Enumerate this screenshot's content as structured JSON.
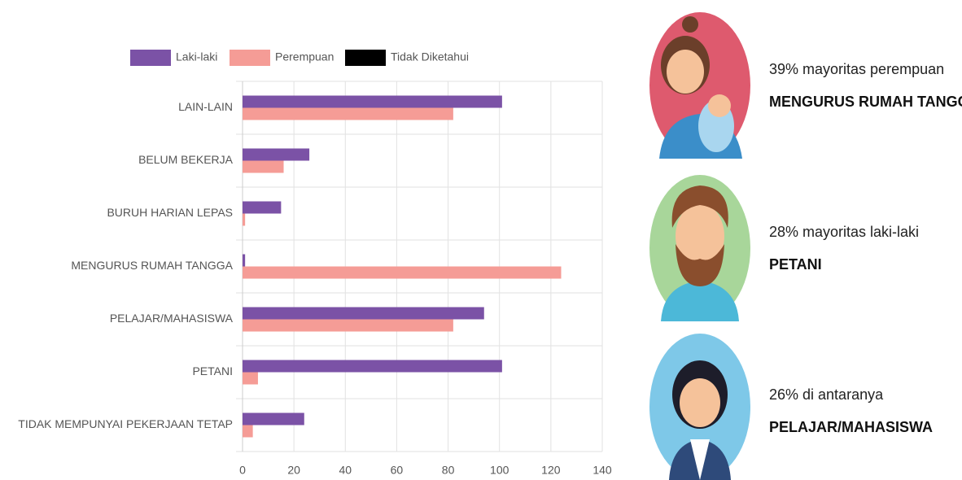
{
  "chart_data": {
    "type": "hbar",
    "categories": [
      "LAIN-LAIN",
      "BELUM BEKERJA",
      "BURUH HARIAN LEPAS",
      "MENGURUS RUMAH TANGGA",
      "PELAJAR/MAHASISWA",
      "PETANI",
      "TIDAK MEMPUNYAI PEKERJAAN TETAP"
    ],
    "series": [
      {
        "name": "Laki-laki",
        "color": "#7b52a6",
        "values": [
          101,
          26,
          15,
          1,
          94,
          101,
          24
        ]
      },
      {
        "name": "Perempuan",
        "color": "#f59c96",
        "values": [
          82,
          16,
          1,
          124,
          82,
          6,
          4
        ]
      },
      {
        "name": "Tidak Diketahui",
        "color": "#000000",
        "values": [
          0,
          0,
          0,
          0,
          0,
          0,
          0
        ]
      }
    ],
    "xlim": [
      0,
      140
    ],
    "xticks": [
      0,
      20,
      40,
      60,
      80,
      100,
      120,
      140
    ],
    "grid": true,
    "legend": "top"
  },
  "highlights": [
    {
      "text": "39% mayoritas perempuan",
      "title": "MENGURUS RUMAH TANGGA"
    },
    {
      "text": "28% mayoritas laki-laki",
      "title": "PETANI"
    },
    {
      "text": "26% di antaranya",
      "title": "PELAJAR/MAHASISWA"
    }
  ]
}
